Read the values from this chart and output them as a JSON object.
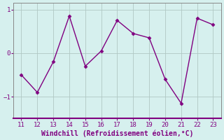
{
  "x": [
    11,
    12,
    13,
    14,
    15,
    16,
    17,
    18,
    19,
    20,
    21,
    22,
    23
  ],
  "y": [
    -0.5,
    -0.9,
    -0.2,
    0.85,
    -0.3,
    0.05,
    0.75,
    0.45,
    0.35,
    -0.6,
    -1.15,
    0.8,
    0.65
  ],
  "line_color": "#800080",
  "marker": "D",
  "marker_size": 2.5,
  "line_width": 1.0,
  "xlabel": "Windchill (Refroidissement éolien,°C)",
  "xlim": [
    10.5,
    23.5
  ],
  "ylim": [
    -1.5,
    1.15
  ],
  "yticks": [
    -1,
    0,
    1
  ],
  "xticks": [
    11,
    12,
    13,
    14,
    15,
    16,
    17,
    18,
    19,
    20,
    21,
    22,
    23
  ],
  "background_color": "#d6f0ee",
  "grid_color": "#b0c8c4",
  "line_border_color": "#800080",
  "tick_color": "#800080",
  "label_color": "#800080",
  "xlabel_fontsize": 7,
  "tick_fontsize": 6.5,
  "spine_color": "#888888"
}
